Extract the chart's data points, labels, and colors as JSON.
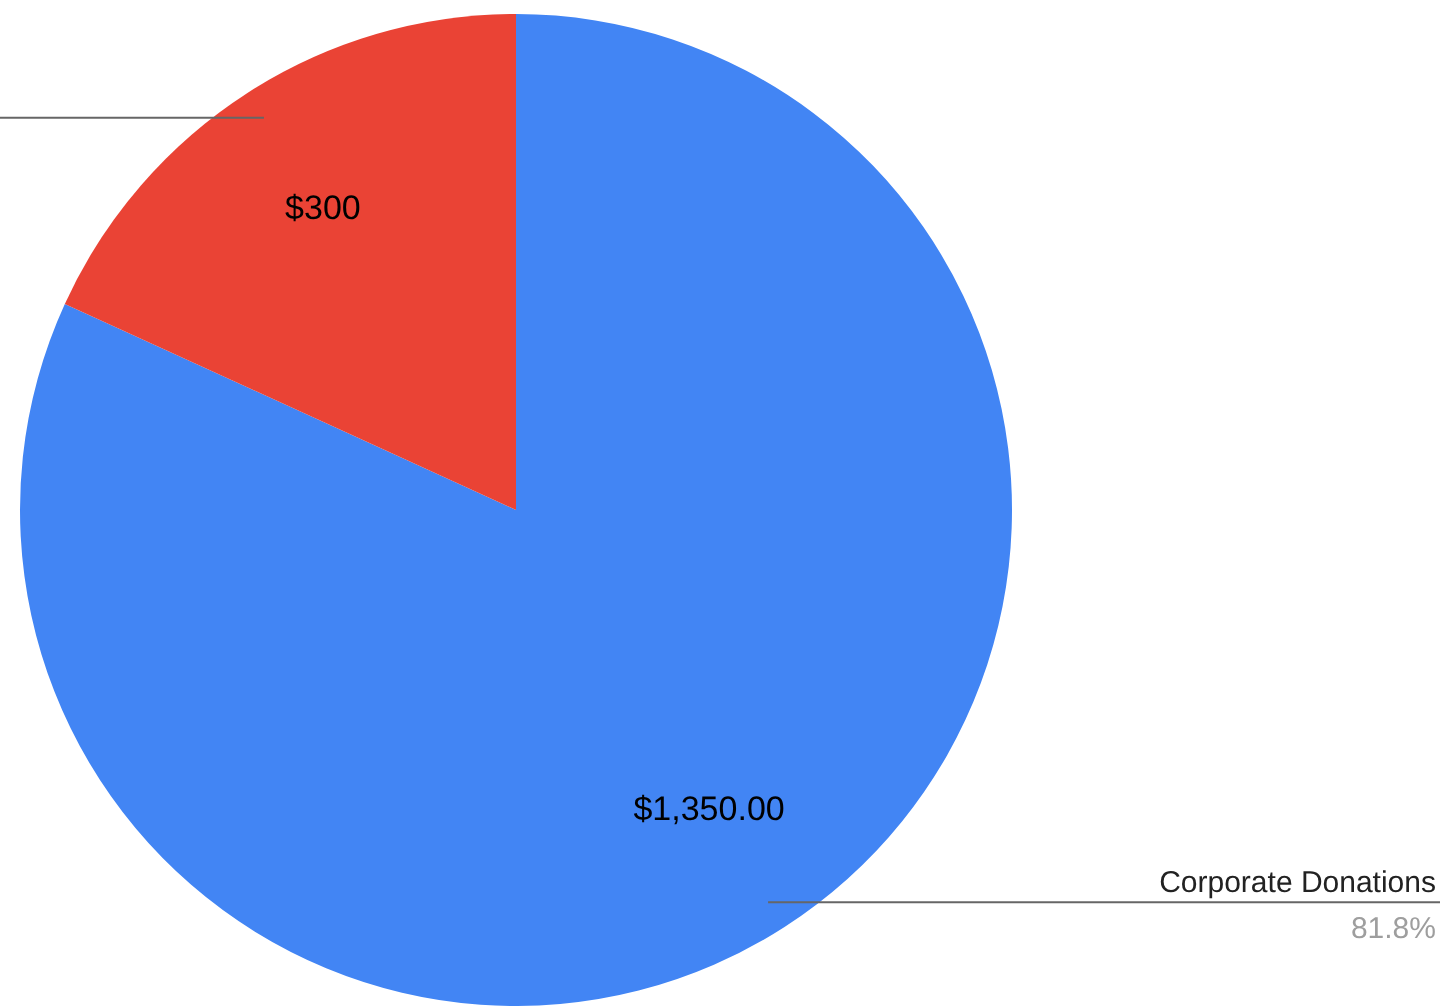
{
  "chart_data": {
    "type": "pie",
    "categories": [
      "Corporate Donations",
      null
    ],
    "values": [
      1350,
      300
    ],
    "colors": [
      "#4285f4",
      "#ea4335"
    ],
    "value_labels": [
      "$1,350.00",
      "$300"
    ],
    "annotations": [
      "81.8%"
    ]
  }
}
